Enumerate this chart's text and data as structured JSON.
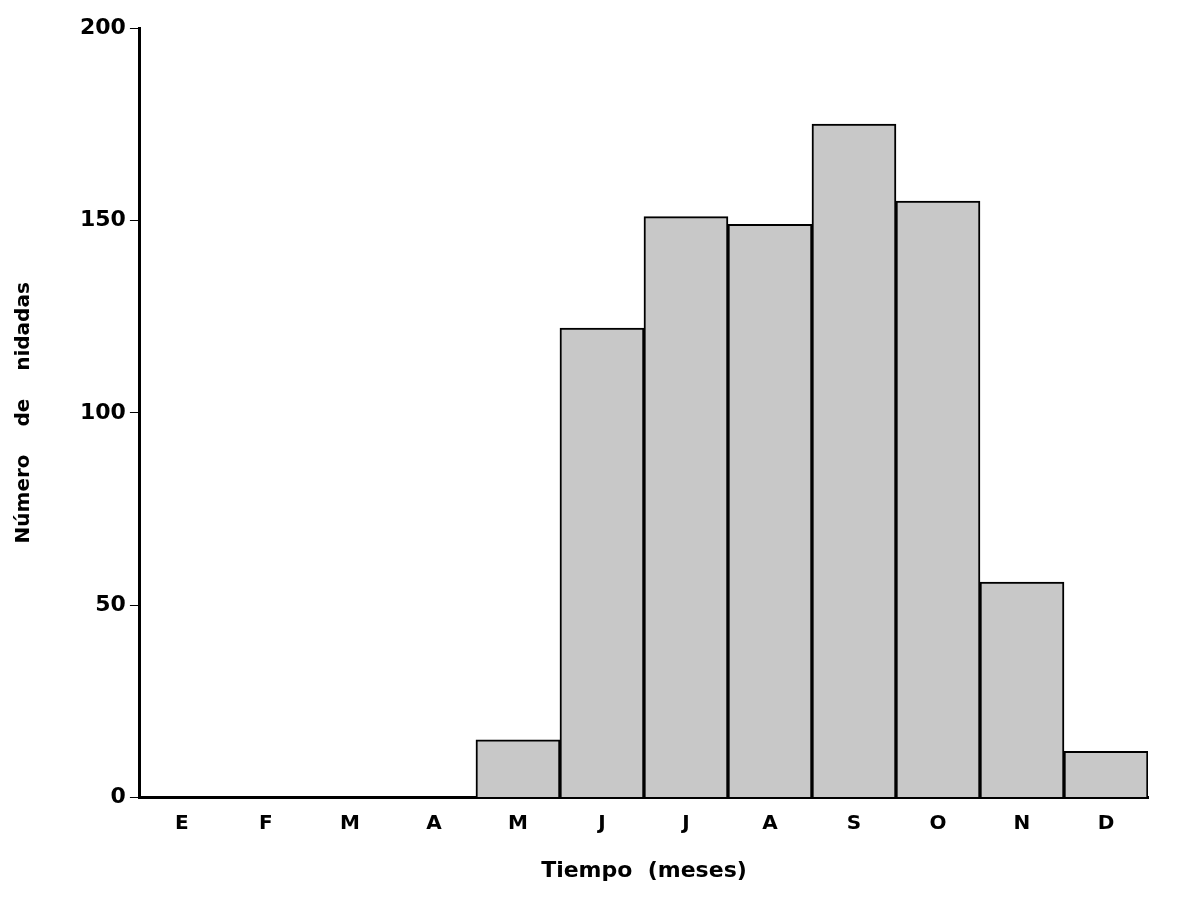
{
  "chart_data": {
    "type": "bar",
    "xlabel": "Tiempo  (meses)",
    "ylabel": "Número    de    nidadas",
    "categories": [
      "E",
      "F",
      "M",
      "A",
      "M",
      "J",
      "J",
      "A",
      "S",
      "O",
      "N",
      "D"
    ],
    "values": [
      0,
      0,
      0,
      0,
      15,
      122,
      151,
      149,
      175,
      155,
      56,
      12
    ],
    "color": "#c8c8c8",
    "ylim": [
      0,
      200
    ],
    "yticks": [
      0,
      50,
      100,
      150,
      200
    ],
    "grid": false,
    "legend": false
  }
}
